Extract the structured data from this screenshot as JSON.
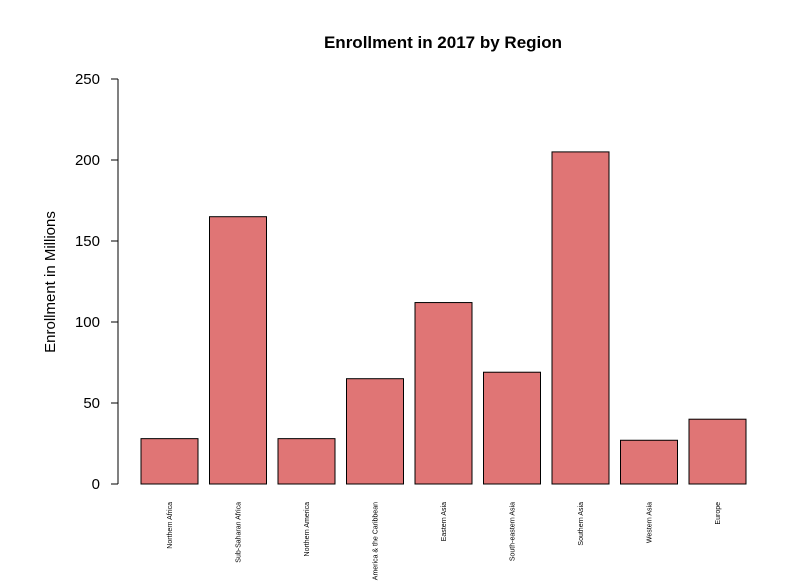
{
  "chart_data": {
    "type": "bar",
    "title": "Enrollment in 2017 by Region",
    "xlabel": "",
    "ylabel": "Enrollment in Millions",
    "categories": [
      "Northern Africa",
      "Sub-Saharan Africa",
      "Northern America",
      "Latin America & the Caribbean",
      "Eastern Asia",
      "South-eastern Asia",
      "Southern Asia",
      "Western Asia",
      "Europe"
    ],
    "values": [
      28,
      165,
      28,
      65,
      112,
      69,
      205,
      27,
      40
    ],
    "ylim": [
      0,
      250
    ],
    "yticks": [
      0,
      50,
      100,
      150,
      200,
      250
    ],
    "bar_color": "#E07575",
    "bar_border_color": "#000000",
    "grid": false,
    "legend": "none"
  }
}
